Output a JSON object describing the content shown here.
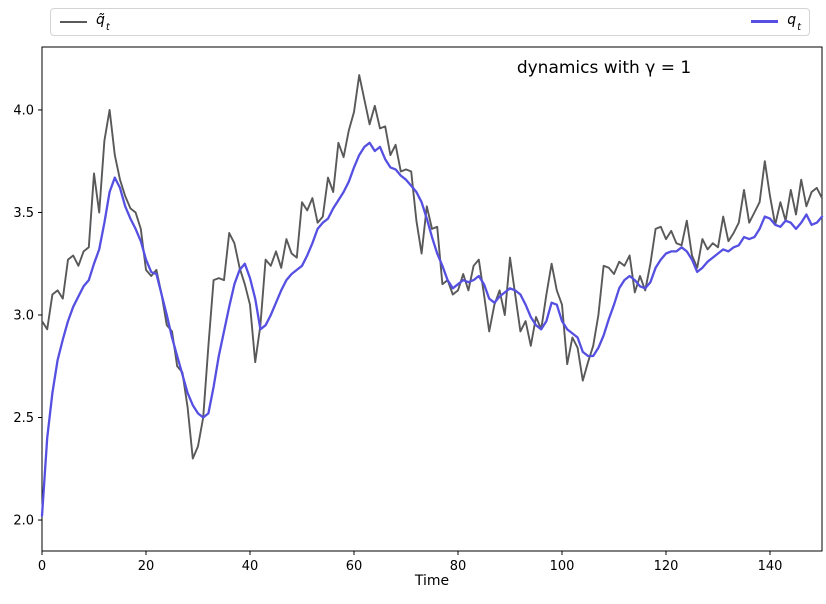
{
  "legend": {
    "entries": [
      {
        "symbol": "q̃",
        "subscript": "t"
      },
      {
        "symbol": "q",
        "subscript": "t"
      }
    ]
  },
  "chart_data": {
    "type": "line",
    "title": "dynamics with γ = 1",
    "xlabel": "Time",
    "ylabel": "",
    "xlim": [
      0,
      150
    ],
    "ylim": [
      1.849,
      4.307
    ],
    "xticks": [
      0,
      20,
      40,
      60,
      80,
      100,
      120,
      140
    ],
    "xtick_labels": [
      "0",
      "20",
      "40",
      "60",
      "80",
      "100",
      "120",
      "140"
    ],
    "yticks": [
      2.0,
      2.5,
      3.0,
      3.5,
      4.0
    ],
    "ytick_labels": [
      "2.0",
      "2.5",
      "3.0",
      "3.5",
      "4.0"
    ],
    "grid": false,
    "legend_position": "top strip spanning plot width; first entry left, second entry right",
    "x_description": "time steps t = 0..150, step 1",
    "series": [
      {
        "id": "q-tilde",
        "label": "q̃_t",
        "color": "#595959",
        "width": 1.9,
        "x_start": 0,
        "x_step": 1,
        "values": [
          2.97,
          2.93,
          3.1,
          3.12,
          3.08,
          3.27,
          3.29,
          3.24,
          3.31,
          3.33,
          3.69,
          3.5,
          3.85,
          4.0,
          3.78,
          3.66,
          3.58,
          3.52,
          3.5,
          3.42,
          3.22,
          3.19,
          3.22,
          3.1,
          2.95,
          2.92,
          2.75,
          2.72,
          2.55,
          2.3,
          2.36,
          2.5,
          2.85,
          3.17,
          3.18,
          3.17,
          3.4,
          3.35,
          3.23,
          3.15,
          3.05,
          2.77,
          2.95,
          3.27,
          3.24,
          3.31,
          3.23,
          3.37,
          3.3,
          3.28,
          3.55,
          3.51,
          3.57,
          3.45,
          3.48,
          3.67,
          3.6,
          3.84,
          3.77,
          3.9,
          3.99,
          4.17,
          4.05,
          3.93,
          4.02,
          3.91,
          3.92,
          3.78,
          3.83,
          3.7,
          3.71,
          3.7,
          3.46,
          3.3,
          3.53,
          3.42,
          3.43,
          3.15,
          3.17,
          3.1,
          3.12,
          3.2,
          3.12,
          3.24,
          3.27,
          3.1,
          2.92,
          3.05,
          3.12,
          3.0,
          3.28,
          3.1,
          2.92,
          2.97,
          2.85,
          2.99,
          2.93,
          3.1,
          3.25,
          3.12,
          3.05,
          2.76,
          2.89,
          2.84,
          2.68,
          2.77,
          2.85,
          3.0,
          3.24,
          3.23,
          3.2,
          3.26,
          3.24,
          3.29,
          3.11,
          3.19,
          3.12,
          3.25,
          3.42,
          3.43,
          3.37,
          3.41,
          3.35,
          3.34,
          3.46,
          3.29,
          3.23,
          3.37,
          3.32,
          3.35,
          3.33,
          3.48,
          3.36,
          3.4,
          3.45,
          3.61,
          3.45,
          3.5,
          3.55,
          3.75,
          3.58,
          3.44,
          3.55,
          3.46,
          3.61,
          3.49,
          3.66,
          3.53,
          3.6,
          3.62,
          3.57
        ]
      },
      {
        "id": "q",
        "label": "q_t",
        "color": "#5550e1",
        "width": 2.3,
        "x_start": 0,
        "x_step": 1,
        "values": [
          2.02,
          2.4,
          2.62,
          2.78,
          2.88,
          2.97,
          3.04,
          3.09,
          3.14,
          3.17,
          3.25,
          3.32,
          3.45,
          3.6,
          3.67,
          3.62,
          3.53,
          3.47,
          3.42,
          3.36,
          3.27,
          3.21,
          3.2,
          3.1,
          3.0,
          2.89,
          2.8,
          2.71,
          2.62,
          2.56,
          2.52,
          2.5,
          2.52,
          2.65,
          2.8,
          2.92,
          3.04,
          3.15,
          3.22,
          3.25,
          3.18,
          3.08,
          2.93,
          2.95,
          3.0,
          3.06,
          3.12,
          3.17,
          3.2,
          3.22,
          3.24,
          3.29,
          3.35,
          3.42,
          3.45,
          3.47,
          3.52,
          3.56,
          3.6,
          3.65,
          3.72,
          3.78,
          3.82,
          3.84,
          3.8,
          3.82,
          3.76,
          3.72,
          3.71,
          3.68,
          3.66,
          3.63,
          3.6,
          3.55,
          3.47,
          3.38,
          3.3,
          3.24,
          3.17,
          3.13,
          3.15,
          3.17,
          3.16,
          3.17,
          3.19,
          3.15,
          3.08,
          3.06,
          3.09,
          3.11,
          3.13,
          3.12,
          3.1,
          3.05,
          2.99,
          2.95,
          2.93,
          2.97,
          3.06,
          3.05,
          2.97,
          2.93,
          2.91,
          2.89,
          2.82,
          2.8,
          2.8,
          2.84,
          2.9,
          2.98,
          3.05,
          3.13,
          3.17,
          3.19,
          3.17,
          3.14,
          3.13,
          3.16,
          3.23,
          3.27,
          3.3,
          3.31,
          3.31,
          3.33,
          3.31,
          3.27,
          3.21,
          3.23,
          3.26,
          3.28,
          3.3,
          3.32,
          3.31,
          3.33,
          3.34,
          3.38,
          3.37,
          3.38,
          3.42,
          3.48,
          3.47,
          3.44,
          3.43,
          3.46,
          3.45,
          3.42,
          3.45,
          3.49,
          3.44,
          3.45,
          3.48
        ]
      }
    ]
  }
}
